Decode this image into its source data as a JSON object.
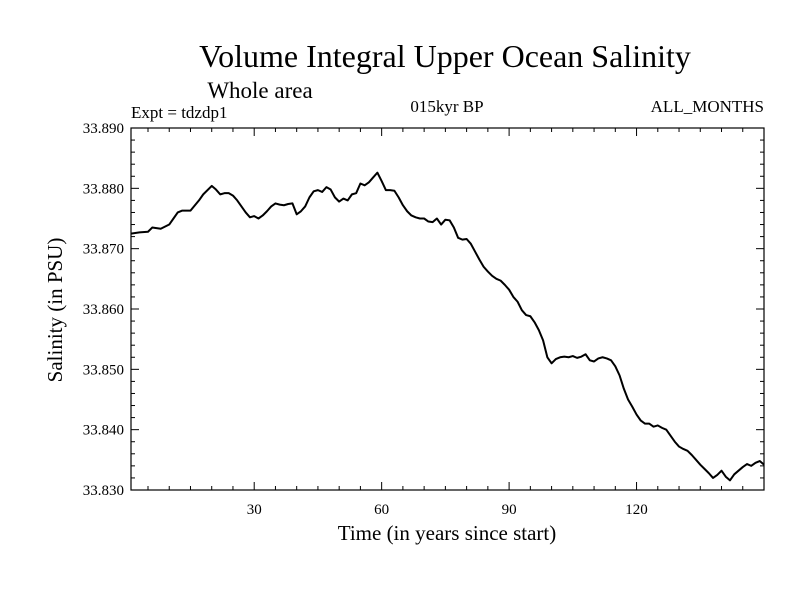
{
  "chart_data": {
    "type": "line",
    "title": "Volume Integral Upper Ocean Salinity",
    "subtitle": "Whole area",
    "header_left": "Expt = tdzdp1",
    "header_center": "015kyr BP",
    "header_right": "ALL_MONTHS",
    "xlabel": "Time (in years since start)",
    "ylabel": "Salinity (in PSU)",
    "xlim": [
      1,
      150
    ],
    "ylim": [
      33.83,
      33.89
    ],
    "xticks": [
      30,
      60,
      90,
      120
    ],
    "xtick_labels": [
      "30",
      "60",
      "90",
      "120"
    ],
    "yticks": [
      33.83,
      33.84,
      33.85,
      33.86,
      33.87,
      33.88,
      33.89
    ],
    "ytick_labels": [
      "33.830",
      "33.840",
      "33.850",
      "33.860",
      "33.870",
      "33.880",
      "33.890"
    ],
    "line_color": "#000000",
    "series": [
      {
        "name": "salinity",
        "x": [
          1,
          3,
          5,
          6,
          8,
          10,
          11,
          12,
          13,
          15,
          17,
          18,
          20,
          21,
          22,
          23,
          24,
          25,
          26,
          27,
          28,
          29,
          30,
          31,
          32,
          33,
          34,
          35,
          36,
          37,
          38,
          39,
          40,
          41,
          42,
          43,
          44,
          45,
          46,
          47,
          48,
          49,
          50,
          51,
          52,
          53,
          54,
          55,
          56,
          57,
          58,
          59,
          60,
          61,
          62,
          63,
          64,
          65,
          66,
          67,
          68,
          69,
          70,
          71,
          72,
          73,
          74,
          75,
          76,
          77,
          78,
          79,
          80,
          81,
          82,
          83,
          84,
          85,
          86,
          87,
          88,
          89,
          90,
          91,
          92,
          93,
          94,
          95,
          96,
          97,
          98,
          99,
          100,
          101,
          102,
          103,
          104,
          105,
          106,
          107,
          108,
          109,
          110,
          111,
          112,
          113,
          114,
          115,
          116,
          117,
          118,
          119,
          120,
          121,
          122,
          123,
          124,
          125,
          126,
          127,
          128,
          129,
          130,
          131,
          132,
          133,
          134,
          135,
          136,
          137,
          138,
          139,
          140,
          141,
          142,
          143,
          144,
          145,
          146,
          147,
          148,
          149,
          150
        ],
        "y": [
          33.8725,
          33.8727,
          33.8728,
          33.8735,
          33.8733,
          33.874,
          33.875,
          33.876,
          33.8763,
          33.8763,
          33.878,
          33.879,
          33.8804,
          33.8798,
          33.879,
          33.8792,
          33.8792,
          33.8788,
          33.878,
          33.877,
          33.876,
          33.8752,
          33.8754,
          33.875,
          33.8755,
          33.8762,
          33.877,
          33.8775,
          33.8773,
          33.8772,
          33.8774,
          33.8775,
          33.8757,
          33.8762,
          33.877,
          33.8785,
          33.8795,
          33.8797,
          33.8794,
          33.8802,
          33.8798,
          33.8785,
          33.8778,
          33.8783,
          33.878,
          33.879,
          33.8792,
          33.8808,
          33.8805,
          33.881,
          33.8818,
          33.8826,
          33.8812,
          33.8797,
          33.8797,
          33.8796,
          33.8785,
          33.8772,
          33.8762,
          33.8755,
          33.8752,
          33.875,
          33.875,
          33.8745,
          33.8744,
          33.875,
          33.874,
          33.8748,
          33.8747,
          33.8735,
          33.8718,
          33.8715,
          33.8716,
          33.8708,
          33.8695,
          33.8682,
          33.867,
          33.8662,
          33.8655,
          33.865,
          33.8647,
          33.864,
          33.8632,
          33.862,
          33.8612,
          33.8598,
          33.859,
          33.8588,
          33.8578,
          33.8565,
          33.8548,
          33.852,
          33.851,
          33.8517,
          33.852,
          33.8521,
          33.852,
          33.8522,
          33.8519,
          33.8521,
          33.8525,
          33.8515,
          33.8513,
          33.8518,
          33.852,
          33.8518,
          33.8515,
          33.8505,
          33.849,
          33.8468,
          33.845,
          33.8438,
          33.8425,
          33.8415,
          33.841,
          33.841,
          33.8405,
          33.8407,
          33.8403,
          33.84,
          33.839,
          33.838,
          33.8372,
          33.8368,
          33.8365,
          33.8358,
          33.835,
          33.8342,
          33.8335,
          33.8328,
          33.832,
          33.8325,
          33.8332,
          33.8322,
          33.8316,
          33.8326,
          33.8332,
          33.8338,
          33.8343,
          33.834,
          33.8345,
          33.8348,
          33.8342
        ]
      }
    ]
  }
}
